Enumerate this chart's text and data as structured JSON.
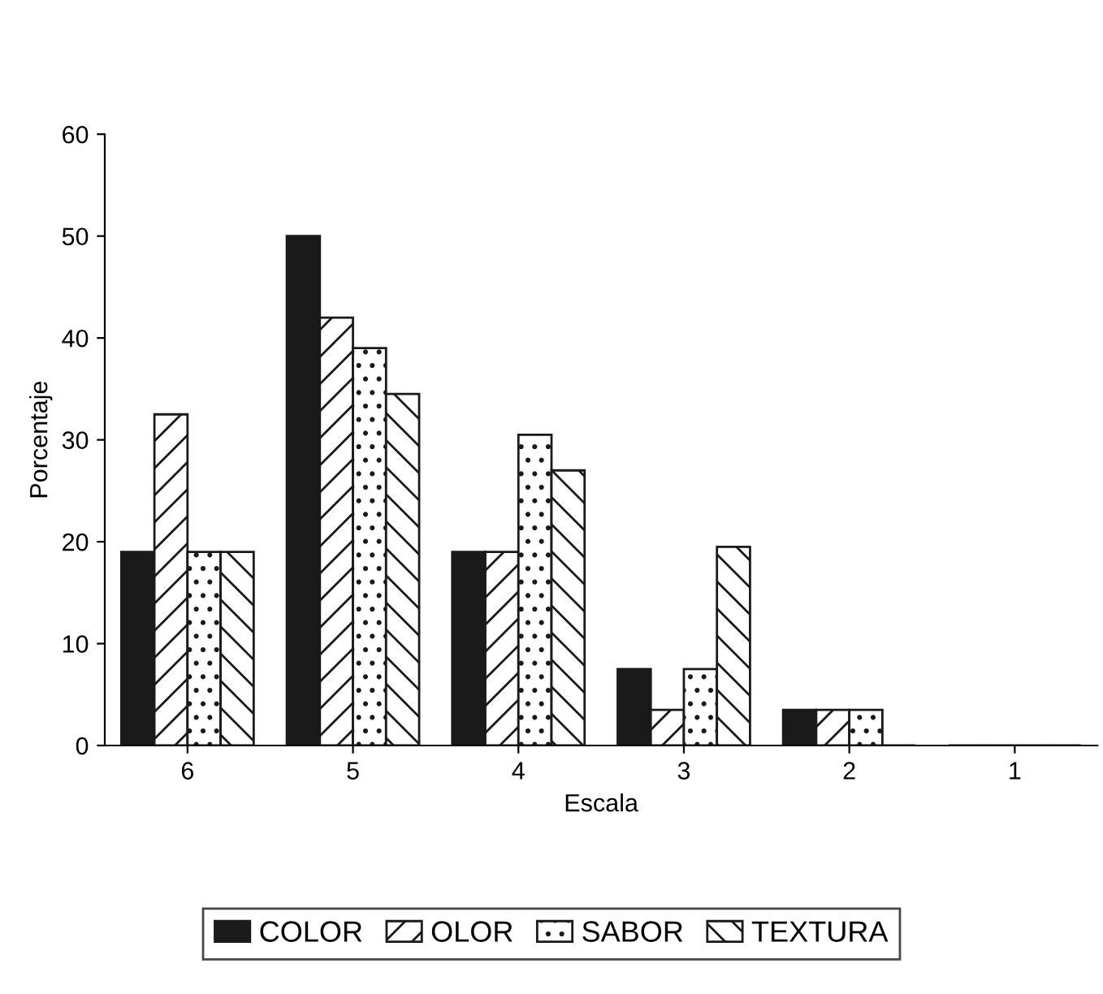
{
  "chart_data": {
    "type": "bar",
    "xlabel": "Escala",
    "ylabel": "Porcentaje",
    "categories": [
      "6",
      "5",
      "4",
      "3",
      "2",
      "1"
    ],
    "series": [
      {
        "name": "COLOR",
        "color": "#1a1a1a",
        "values": [
          19,
          50,
          19,
          7.5,
          3.5,
          0
        ]
      },
      {
        "name": "OLOR",
        "color": "#1a1a1a",
        "values": [
          32.5,
          42,
          19,
          3.5,
          3.5,
          0
        ]
      },
      {
        "name": "SABOR",
        "color": "#1a1a1a",
        "values": [
          19,
          39,
          30.5,
          7.5,
          3.5,
          0
        ]
      },
      {
        "name": "TEXTURA",
        "color": "#1a1a1a",
        "values": [
          19,
          34.5,
          27,
          19.5,
          0,
          0
        ]
      }
    ],
    "ylim": [
      0,
      60
    ],
    "yticks": [
      0,
      10,
      20,
      30,
      40,
      50,
      60
    ],
    "grid": false,
    "legend": "bottom"
  }
}
